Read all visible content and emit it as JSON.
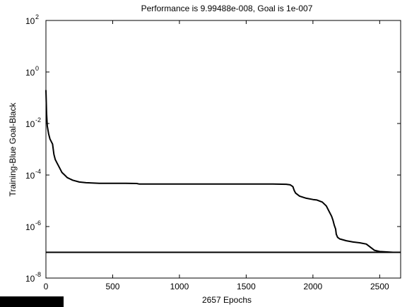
{
  "chart_data": {
    "type": "line",
    "title": "Performance is 9.99488e-008, Goal is 1e-007",
    "xlabel": "2657 Epochs",
    "ylabel": "Training-Blue  Goal-Black",
    "xlim": [
      0,
      2657
    ],
    "ylim_log10": [
      -8,
      2
    ],
    "y_scale": "log",
    "x_ticks": [
      {
        "value": 0,
        "label": "0"
      },
      {
        "value": 500,
        "label": "500"
      },
      {
        "value": 1000,
        "label": "1000"
      },
      {
        "value": 1500,
        "label": "1500"
      },
      {
        "value": 2000,
        "label": "2000"
      },
      {
        "value": 2500,
        "label": "2500"
      }
    ],
    "y_ticks": [
      {
        "value": 2,
        "base": "10",
        "exp": "2"
      },
      {
        "value": 0,
        "base": "10",
        "exp": "0"
      },
      {
        "value": -2,
        "base": "10",
        "exp": "-2"
      },
      {
        "value": -4,
        "base": "10",
        "exp": "-4"
      },
      {
        "value": -6,
        "base": "10",
        "exp": "-6"
      },
      {
        "value": -8,
        "base": "10",
        "exp": "-8"
      }
    ],
    "grid": false,
    "series": [
      {
        "color": "#000000",
        "y_unit": "log10",
        "points": [
          [
            0,
            -0.7
          ],
          [
            5,
            -1.6
          ],
          [
            10,
            -2.1
          ],
          [
            20,
            -2.4
          ],
          [
            30,
            -2.6
          ],
          [
            50,
            -2.8
          ],
          [
            60,
            -3.2
          ],
          [
            70,
            -3.4
          ],
          [
            80,
            -3.5
          ],
          [
            100,
            -3.7
          ],
          [
            120,
            -3.9
          ],
          [
            140,
            -4.0
          ],
          [
            160,
            -4.1
          ],
          [
            180,
            -4.15
          ],
          [
            200,
            -4.2
          ],
          [
            250,
            -4.27
          ],
          [
            300,
            -4.3
          ],
          [
            400,
            -4.32
          ],
          [
            500,
            -4.32
          ],
          [
            600,
            -4.32
          ],
          [
            680,
            -4.33
          ],
          [
            700,
            -4.35
          ],
          [
            800,
            -4.35
          ],
          [
            900,
            -4.35
          ],
          [
            1000,
            -4.35
          ],
          [
            1200,
            -4.35
          ],
          [
            1400,
            -4.35
          ],
          [
            1600,
            -4.35
          ],
          [
            1700,
            -4.35
          ],
          [
            1800,
            -4.36
          ],
          [
            1830,
            -4.38
          ],
          [
            1850,
            -4.45
          ],
          [
            1860,
            -4.6
          ],
          [
            1870,
            -4.7
          ],
          [
            1900,
            -4.82
          ],
          [
            1950,
            -4.9
          ],
          [
            2000,
            -4.95
          ],
          [
            2030,
            -4.97
          ],
          [
            2070,
            -5.05
          ],
          [
            2100,
            -5.2
          ],
          [
            2120,
            -5.4
          ],
          [
            2140,
            -5.6
          ],
          [
            2150,
            -5.75
          ],
          [
            2160,
            -5.95
          ],
          [
            2170,
            -6.1
          ],
          [
            2175,
            -6.3
          ],
          [
            2185,
            -6.42
          ],
          [
            2200,
            -6.48
          ],
          [
            2250,
            -6.55
          ],
          [
            2300,
            -6.6
          ],
          [
            2350,
            -6.63
          ],
          [
            2400,
            -6.68
          ],
          [
            2430,
            -6.8
          ],
          [
            2460,
            -6.92
          ],
          [
            2500,
            -6.97
          ],
          [
            2600,
            -7.0
          ],
          [
            2657,
            -7.0
          ]
        ]
      },
      {
        "color": "#000000",
        "y_unit": "log10",
        "points": [
          [
            0,
            -7
          ],
          [
            2657,
            -7
          ]
        ]
      }
    ]
  }
}
